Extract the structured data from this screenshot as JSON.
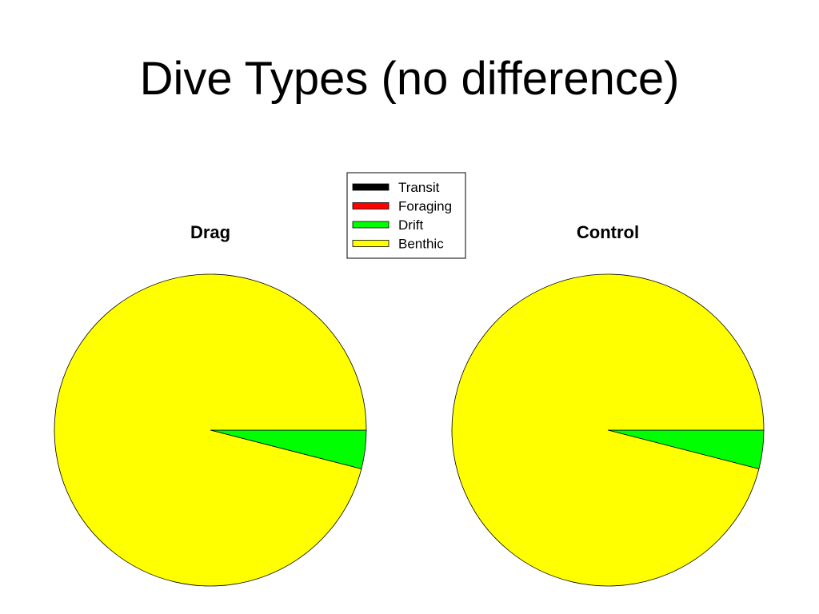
{
  "slide": {
    "title": "Dive Types (no difference)"
  },
  "legend": {
    "placement": "top-center",
    "entries": [
      {
        "label": "Transit",
        "color": "#000000"
      },
      {
        "label": "Foraging",
        "color": "#ff0000"
      },
      {
        "label": "Drift",
        "color": "#00ff00"
      },
      {
        "label": "Benthic",
        "color": "#ffff00"
      }
    ]
  },
  "chart_data": [
    {
      "type": "pie",
      "title": "Drag",
      "categories": [
        "Transit",
        "Foraging",
        "Drift",
        "Benthic"
      ],
      "values": [
        0,
        0,
        4,
        96
      ],
      "colors": [
        "#000000",
        "#ff0000",
        "#00ff00",
        "#ffff00"
      ]
    },
    {
      "type": "pie",
      "title": "Control",
      "categories": [
        "Transit",
        "Foraging",
        "Drift",
        "Benthic"
      ],
      "values": [
        0,
        0,
        4,
        96
      ],
      "colors": [
        "#000000",
        "#ff0000",
        "#00ff00",
        "#ffff00"
      ]
    }
  ]
}
